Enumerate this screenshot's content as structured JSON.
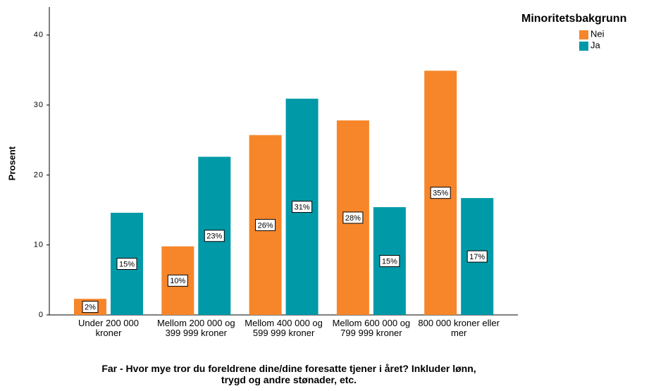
{
  "chart_data": {
    "type": "bar",
    "x_label": "Far - Hvor mye tror du foreldrene dine/dine foresatte tjener i året? Inkluder lønn, trygd og andre stønader, etc.",
    "y_label": "Prosent",
    "legend_title": "Minoritetsbakgrunn",
    "legend_position": "top-right",
    "categories": [
      "Under 200 000 kroner",
      "Mellom 200 000 og 399 999 kroner",
      "Mellom 400 000 og 599 999 kroner",
      "Mellom 600 000 og 799 999 kroner",
      "800 000 kroner eller mer"
    ],
    "series": [
      {
        "name": "Nei",
        "color": "#f7862a",
        "values": [
          2.3,
          9.8,
          25.7,
          27.8,
          34.9
        ],
        "value_labels": [
          "2%",
          "10%",
          "26%",
          "28%",
          "35%"
        ]
      },
      {
        "name": "Ja",
        "color": "#0099a8",
        "values": [
          14.6,
          22.6,
          30.9,
          15.4,
          16.7
        ],
        "value_labels": [
          "15%",
          "23%",
          "31%",
          "15%",
          "17%"
        ]
      }
    ],
    "ylim": [
      0,
      44
    ],
    "yticks": [
      0,
      10,
      20,
      30,
      40
    ],
    "grid": false
  }
}
